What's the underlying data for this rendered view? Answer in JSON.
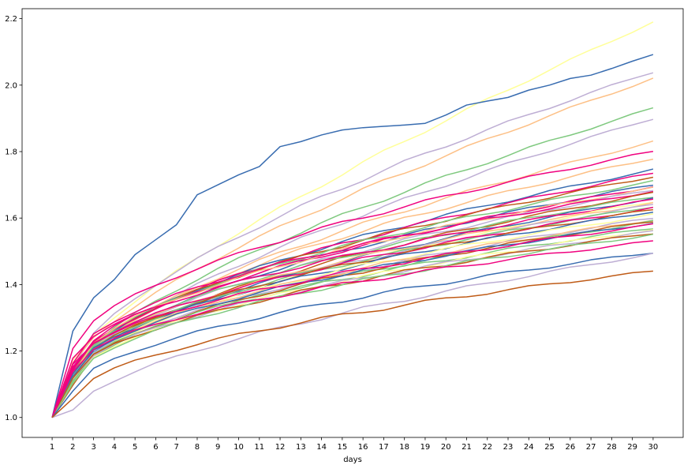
{
  "chart_data": {
    "type": "line",
    "title": "",
    "xlabel": "days",
    "ylabel": "",
    "x": [
      1,
      2,
      3,
      4,
      5,
      6,
      7,
      8,
      9,
      10,
      11,
      12,
      13,
      14,
      15,
      16,
      17,
      18,
      19,
      20,
      21,
      22,
      23,
      24,
      25,
      26,
      27,
      28,
      29,
      30
    ],
    "xlim": [
      -0.45,
      31.45
    ],
    "ylim": [
      0.94,
      2.23
    ],
    "yticks": [
      1.0,
      1.2,
      1.4,
      1.6,
      1.8,
      2.0,
      2.2
    ],
    "ytick_labels": [
      "1.0",
      "1.2",
      "1.4",
      "1.6",
      "1.8",
      "2.0",
      "2.2"
    ],
    "grid": false,
    "legend": "none",
    "series": [
      {
        "color": "#ffff99",
        "start": 1.0,
        "end": 2.19,
        "shape": 1.25,
        "day2": 1.17
      },
      {
        "color": "#386cb0",
        "values": [
          1.0,
          1.26,
          1.36,
          1.415,
          1.49,
          1.535,
          1.58,
          1.67,
          1.7,
          1.73,
          1.755,
          1.815,
          1.83,
          1.85,
          1.865,
          1.872,
          1.876,
          1.88,
          1.885,
          1.91,
          1.94,
          1.952,
          1.963,
          1.985,
          2.0,
          2.02,
          2.03,
          2.05,
          2.072,
          2.092
        ]
      },
      {
        "color": "#beaed4",
        "start": 1.0,
        "end": 2.04,
        "shape": 1.05,
        "day2": 1.15
      },
      {
        "color": "#fdc086",
        "start": 1.0,
        "end": 2.02,
        "shape": 1.15,
        "day2": 1.16
      },
      {
        "color": "#7fc97f",
        "start": 1.0,
        "end": 1.93,
        "shape": 1.1,
        "day2": 1.14
      },
      {
        "color": "#beaed4",
        "start": 1.0,
        "end": 1.9,
        "shape": 1.1,
        "day2": 1.13
      },
      {
        "color": "#fdc086",
        "start": 1.0,
        "end": 1.83,
        "shape": 1.0,
        "day2": 1.12
      },
      {
        "color": "#f0027f",
        "start": 1.0,
        "end": 1.8,
        "shape": 0.95,
        "day2": 1.21
      },
      {
        "color": "#fdc086",
        "start": 1.0,
        "end": 1.78,
        "shape": 0.9,
        "day2": 1.1
      },
      {
        "color": "#386cb0",
        "start": 1.0,
        "end": 1.745,
        "shape": 0.9,
        "day2": 1.12
      },
      {
        "color": "#f0027f",
        "start": 1.0,
        "end": 1.735,
        "shape": 0.95,
        "day2": 1.15
      },
      {
        "color": "#bf5b17",
        "start": 1.0,
        "end": 1.725,
        "shape": 0.9,
        "day2": 1.13
      },
      {
        "color": "#7fc97f",
        "start": 1.0,
        "end": 1.71,
        "shape": 0.85,
        "day2": 1.12
      },
      {
        "color": "#386cb0",
        "start": 1.0,
        "end": 1.7,
        "shape": 0.85,
        "day2": 1.1
      },
      {
        "color": "#f0027f",
        "start": 1.0,
        "end": 1.695,
        "shape": 0.9,
        "day2": 1.14
      },
      {
        "color": "#fdc086",
        "start": 1.0,
        "end": 1.69,
        "shape": 0.85,
        "day2": 1.13
      },
      {
        "color": "#beaed4",
        "start": 1.0,
        "end": 1.685,
        "shape": 0.9,
        "day2": 1.12
      },
      {
        "color": "#f0027f",
        "start": 1.0,
        "end": 1.68,
        "shape": 0.85,
        "day2": 1.16
      },
      {
        "color": "#bf5b17",
        "start": 1.0,
        "end": 1.675,
        "shape": 0.9,
        "day2": 1.11
      },
      {
        "color": "#7fc97f",
        "start": 1.0,
        "end": 1.665,
        "shape": 0.85,
        "day2": 1.12
      },
      {
        "color": "#386cb0",
        "start": 1.0,
        "end": 1.66,
        "shape": 0.9,
        "day2": 1.11
      },
      {
        "color": "#f0027f",
        "start": 1.0,
        "end": 1.655,
        "shape": 0.95,
        "day2": 1.18
      },
      {
        "color": "#ffff99",
        "start": 1.0,
        "end": 1.65,
        "shape": 0.9,
        "day2": 1.1
      },
      {
        "color": "#fdc086",
        "start": 1.0,
        "end": 1.645,
        "shape": 0.85,
        "day2": 1.12
      },
      {
        "color": "#beaed4",
        "start": 1.0,
        "end": 1.64,
        "shape": 0.85,
        "day2": 1.1
      },
      {
        "color": "#7fc97f",
        "start": 1.0,
        "end": 1.635,
        "shape": 0.9,
        "day2": 1.13
      },
      {
        "color": "#f0027f",
        "start": 1.0,
        "end": 1.63,
        "shape": 0.9,
        "day2": 1.15
      },
      {
        "color": "#bf5b17",
        "start": 1.0,
        "end": 1.625,
        "shape": 0.85,
        "day2": 1.12
      },
      {
        "color": "#386cb0",
        "start": 1.0,
        "end": 1.62,
        "shape": 0.9,
        "day2": 1.13
      },
      {
        "color": "#ffff99",
        "start": 1.0,
        "end": 1.61,
        "shape": 0.85,
        "day2": 1.11
      },
      {
        "color": "#beaed4",
        "start": 1.0,
        "end": 1.6,
        "shape": 0.9,
        "day2": 1.12
      },
      {
        "color": "#fdc086",
        "start": 1.0,
        "end": 1.595,
        "shape": 0.85,
        "day2": 1.12
      },
      {
        "color": "#7fc97f",
        "start": 1.0,
        "end": 1.59,
        "shape": 0.9,
        "day2": 1.11
      },
      {
        "color": "#bf5b17",
        "start": 1.0,
        "end": 1.59,
        "shape": 0.85,
        "day2": 1.1
      },
      {
        "color": "#386cb0",
        "start": 1.0,
        "end": 1.585,
        "shape": 0.85,
        "day2": 1.12
      },
      {
        "color": "#f0027f",
        "start": 1.0,
        "end": 1.58,
        "shape": 0.9,
        "day2": 1.16
      },
      {
        "color": "#7fc97f",
        "start": 1.0,
        "end": 1.57,
        "shape": 0.85,
        "day2": 1.11
      },
      {
        "color": "#ffff99",
        "start": 1.0,
        "end": 1.565,
        "shape": 0.85,
        "day2": 1.1
      },
      {
        "color": "#beaed4",
        "start": 1.0,
        "end": 1.56,
        "shape": 0.9,
        "day2": 1.12
      },
      {
        "color": "#bf5b17",
        "start": 1.0,
        "end": 1.555,
        "shape": 0.9,
        "day2": 1.12
      },
      {
        "color": "#7fc97f",
        "start": 1.0,
        "end": 1.55,
        "shape": 0.85,
        "day2": 1.1
      },
      {
        "color": "#f0027f",
        "start": 1.0,
        "end": 1.53,
        "shape": 0.85,
        "day2": 1.14
      },
      {
        "color": "#386cb0",
        "start": 1.0,
        "end": 1.497,
        "shape": 0.9,
        "day2": 1.08
      },
      {
        "color": "#beaed4",
        "start": 1.0,
        "end": 1.492,
        "shape": 1.0,
        "day2": 1.02
      },
      {
        "color": "#bf5b17",
        "start": 1.0,
        "end": 1.44,
        "shape": 0.9,
        "day2": 1.06
      }
    ]
  }
}
